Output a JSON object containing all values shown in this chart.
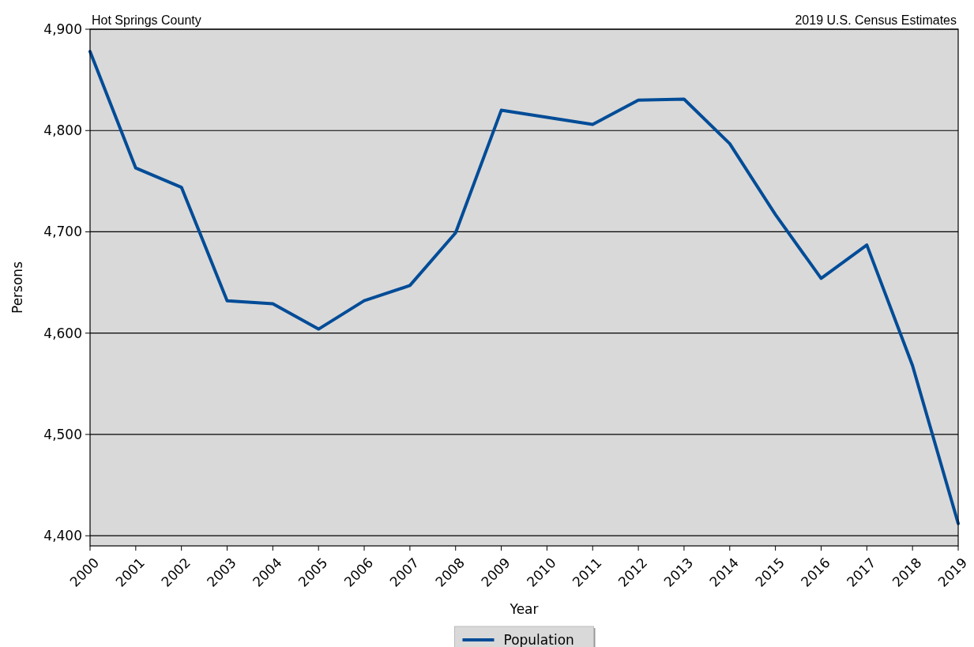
{
  "chart_data": {
    "type": "line",
    "xlabel": "Year",
    "ylabel": "Persons",
    "annotations": [
      "Hot Springs County",
      "2019 U.S. Census Estimates"
    ],
    "categories": [
      "2000",
      "2001",
      "2002",
      "2003",
      "2004",
      "2005",
      "2006",
      "2007",
      "2008",
      "2009",
      "2010",
      "2011",
      "2012",
      "2013",
      "2014",
      "2015",
      "2016",
      "2017",
      "2018",
      "2019"
    ],
    "series": [
      {
        "name": "Population",
        "color": "#004c97",
        "values": [
          4878,
          4763,
          4744,
          4632,
          4629,
          4604,
          4632,
          4647,
          4699,
          4820,
          4813,
          4806,
          4830,
          4831,
          4787,
          4717,
          4654,
          4687,
          4568,
          4412
        ]
      }
    ],
    "ylim": [
      4390,
      4900
    ],
    "yticks": [
      {
        "value": 4400,
        "label": "4,400"
      },
      {
        "value": 4500,
        "label": "4,500"
      },
      {
        "value": 4600,
        "label": "4,600"
      },
      {
        "value": 4700,
        "label": "4,700"
      },
      {
        "value": 4800,
        "label": "4,800"
      },
      {
        "value": 4900,
        "label": "4,900"
      }
    ],
    "grid": "y",
    "legend": "bottom",
    "marker": "none",
    "line_style": "solid"
  }
}
